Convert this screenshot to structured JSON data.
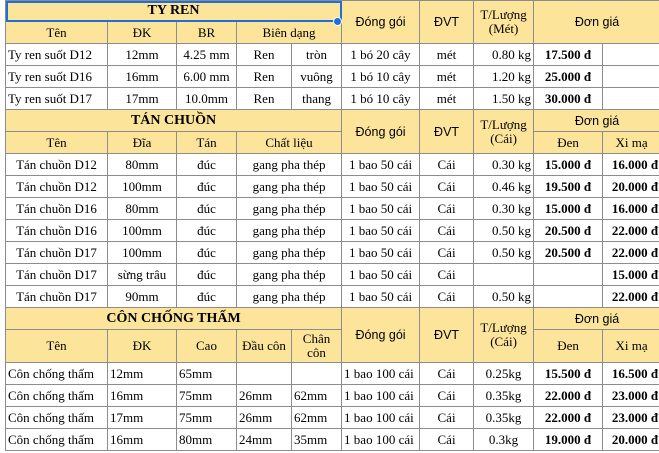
{
  "colors": {
    "header_bg": "#fde49b",
    "selection": "#1e6fd6",
    "grid": "#8c8c8c"
  },
  "section1": {
    "title": "TY REN",
    "headers": {
      "name": "Tên",
      "dk": "ĐK",
      "br": "BR",
      "profile": "Biên dạng",
      "pack": "Đóng gói",
      "unit": "ĐVT",
      "weight": "T/Lượng (Mét)",
      "price": "Đơn giá"
    },
    "rows": [
      {
        "name": "Ty ren suốt D12",
        "dk": "12mm",
        "br": "4.25 mm",
        "p1": "Ren",
        "p2": "tròn",
        "pack": "1 bó 20 cây",
        "unit": "mét",
        "weight": "0.80 kg",
        "price": "17.500 đ"
      },
      {
        "name": "Ty ren suốt D16",
        "dk": "16mm",
        "br": "6.00 mm",
        "p1": "Ren",
        "p2": "vuông",
        "pack": "1 bó 10 cây",
        "unit": "mét",
        "weight": "1.20 kg",
        "price": "25.000 đ"
      },
      {
        "name": "Ty ren suốt D17",
        "dk": "17mm",
        "br": "10.0mm",
        "p1": "Ren",
        "p2": "thang",
        "pack": "1 bó 10 cây",
        "unit": "mét",
        "weight": "1.50 kg",
        "price": "30.000 đ"
      }
    ]
  },
  "section2": {
    "title": "TÁN CHUỒN",
    "headers": {
      "name": "Tên",
      "disc": "Đĩa",
      "tan": "Tán",
      "material": "Chất liệu",
      "pack": "Đóng gói",
      "unit": "ĐVT",
      "weight": "T/Lượng (Cái)",
      "price": "Đơn giá",
      "black": "Đen",
      "plated": "Xi mạ"
    },
    "rows": [
      {
        "name": "Tán chuồn D12",
        "disc": "80mm",
        "tan": "đúc",
        "material": "gang pha thép",
        "pack": "1 bao 50 cái",
        "unit": "Cái",
        "weight": "0.30 kg",
        "black": "15.000 đ",
        "plated": "16.000 đ"
      },
      {
        "name": "Tán chuồn D12",
        "disc": "100mm",
        "tan": "đúc",
        "material": "gang pha thép",
        "pack": "1 bao 50 cái",
        "unit": "Cái",
        "weight": "0.46 kg",
        "black": "19.500 đ",
        "plated": "20.000 đ"
      },
      {
        "name": "Tán chuồn D16",
        "disc": "80mm",
        "tan": "đúc",
        "material": "gang pha thép",
        "pack": "1 bao 50 cái",
        "unit": "Cái",
        "weight": "0.30 kg",
        "black": "15.000 đ",
        "plated": "16.000 đ"
      },
      {
        "name": "Tán chuồn D16",
        "disc": "100mm",
        "tan": "đúc",
        "material": "gang pha thép",
        "pack": "1 bao 50 cái",
        "unit": "Cái",
        "weight": "0.50 kg",
        "black": "20.500 đ",
        "plated": "22.000 đ"
      },
      {
        "name": "Tán chuồn D17",
        "disc": "100mm",
        "tan": "đúc",
        "material": "gang pha thép",
        "pack": "1 bao 50 cái",
        "unit": "Cái",
        "weight": "0.50 kg",
        "black": "20.500 đ",
        "plated": "22.000 đ"
      },
      {
        "name": "Tán chuồn D17",
        "disc": "sừng trâu",
        "tan": "đúc",
        "material": "gang pha thép",
        "pack": "1 bao 50 cái",
        "unit": "Cái",
        "weight": "",
        "black": "",
        "plated": "15.000 đ"
      },
      {
        "name": "Tán chuồn D17",
        "disc": "90mm",
        "tan": "đúc",
        "material": "gang pha thép",
        "pack": "1 bao 50 cái",
        "unit": "Cái",
        "weight": "0.50 kg",
        "black": "",
        "plated": "22.000 đ"
      }
    ]
  },
  "section3": {
    "title": "CÔN CHỐNG THẤM",
    "headers": {
      "name": "Tên",
      "dk": "ĐK",
      "height": "Cao",
      "head": "Đầu côn",
      "foot": "Chân côn",
      "pack": "Đóng gói",
      "unit": "ĐVT",
      "weight": "T/Lượng (Cái)",
      "price": "Đơn giá",
      "black": "Đen",
      "plated": "Xi mạ"
    },
    "rows": [
      {
        "name": "Côn chống thấm",
        "dk": "12mm",
        "height": "65mm",
        "head": "",
        "foot": "",
        "pack": "1 bao 100 cái",
        "unit": "Cái",
        "weight": "0.25kg",
        "black": "15.500 đ",
        "plated": "16.500 đ"
      },
      {
        "name": "Côn chống thấm",
        "dk": "16mm",
        "height": "75mm",
        "head": "26mm",
        "foot": "62mm",
        "pack": "1 bao 100 cái",
        "unit": "Cái",
        "weight": "0.35kg",
        "black": "22.000 đ",
        "plated": "23.000 đ"
      },
      {
        "name": "Côn chống thấm",
        "dk": "17mm",
        "height": "75mm",
        "head": "26mm",
        "foot": "62mm",
        "pack": "1 bao 100 cái",
        "unit": "Cái",
        "weight": "0.35kg",
        "black": "22.000 đ",
        "plated": "23.000 đ"
      },
      {
        "name": "Côn chống thấm",
        "dk": "16mm",
        "height": "80mm",
        "head": "24mm",
        "foot": "35mm",
        "pack": "1 bao 100 cái",
        "unit": "Cái",
        "weight": "0.3kg",
        "black": "19.000 đ",
        "plated": "20.000 đ"
      }
    ]
  }
}
